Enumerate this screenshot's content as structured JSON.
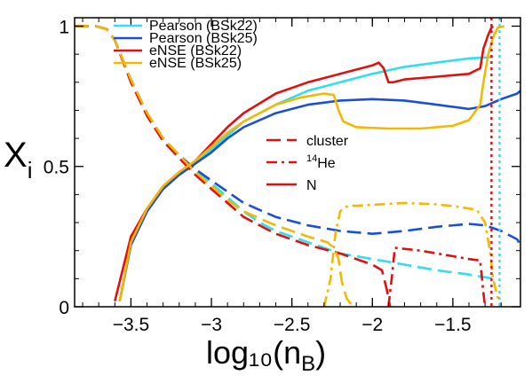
{
  "chart_data": {
    "type": "line",
    "xlabel": "log₁₀(n",
    "xlabel_sub": "B",
    "xlabel_close": ")",
    "ylabel": "X",
    "ylabel_sub": "i",
    "xlim": [
      -3.85,
      -1.08
    ],
    "ylim": [
      0,
      1.03
    ],
    "xticks": [
      -3.5,
      -3,
      -2.5,
      -2,
      -1.5
    ],
    "xtick_labels": [
      "−3.5",
      "−3",
      "−2.5",
      "−2",
      "−1.5"
    ],
    "yticks": [
      0,
      0.5,
      1
    ],
    "ytick_labels": [
      "0",
      "0.5",
      "1"
    ],
    "grid": false,
    "models": [
      {
        "name": "Pearson (BSk22)",
        "color": "#33ddee"
      },
      {
        "name": "Pearson (BSk25)",
        "color": "#1a4fd6"
      },
      {
        "name": "eNSE (BSk22)",
        "color": "#e01010"
      },
      {
        "name": "eNSE (BSk25)",
        "color": "#f5b800"
      }
    ],
    "styles_legend": {
      "color": "#e01010",
      "items": [
        {
          "label": "cluster",
          "dash": "dash"
        },
        {
          "label_sup": "14",
          "label": "He",
          "dash": "dashdot"
        },
        {
          "label": "N",
          "dash": "solid"
        }
      ]
    },
    "vlines": [
      {
        "x": -1.26,
        "color": "#e01010",
        "dash": "dot"
      },
      {
        "x": -1.21,
        "color": "#33ddee",
        "dash": "dot"
      }
    ],
    "series": [
      {
        "model": 0,
        "kind": "N",
        "dash": "solid",
        "x": [
          -3.57,
          -3.5,
          -3.4,
          -3.3,
          -3.2,
          -3.1,
          -3.0,
          -2.9,
          -2.8,
          -2.6,
          -2.4,
          -2.2,
          -2.0,
          -1.8,
          -1.6,
          -1.4,
          -1.25
        ],
        "y": [
          0.02,
          0.22,
          0.34,
          0.42,
          0.47,
          0.51,
          0.56,
          0.61,
          0.66,
          0.72,
          0.77,
          0.8,
          0.83,
          0.855,
          0.87,
          0.885,
          0.89
        ]
      },
      {
        "model": 0,
        "kind": "cluster",
        "dash": "dash",
        "x": [
          -3.85,
          -3.72,
          -3.65,
          -3.6,
          -3.5,
          -3.4,
          -3.3,
          -3.2,
          -3.1,
          -3.0,
          -2.9,
          -2.8,
          -2.7,
          -2.6,
          -2.5,
          -2.4,
          -2.3,
          -2.2,
          -2.0,
          -1.8,
          -1.6,
          -1.4,
          -1.25
        ],
        "y": [
          1.0,
          1.0,
          0.99,
          0.95,
          0.81,
          0.69,
          0.6,
          0.54,
          0.49,
          0.44,
          0.39,
          0.34,
          0.3,
          0.27,
          0.25,
          0.23,
          0.21,
          0.19,
          0.17,
          0.15,
          0.13,
          0.115,
          0.1
        ]
      },
      {
        "model": 1,
        "kind": "N",
        "dash": "solid",
        "x": [
          -3.57,
          -3.5,
          -3.4,
          -3.3,
          -3.2,
          -3.1,
          -3.0,
          -2.9,
          -2.8,
          -2.6,
          -2.4,
          -2.2,
          -2.0,
          -1.8,
          -1.6,
          -1.4,
          -1.3,
          -1.2,
          -1.1,
          -1.08
        ],
        "y": [
          0.02,
          0.22,
          0.34,
          0.42,
          0.47,
          0.51,
          0.55,
          0.6,
          0.64,
          0.69,
          0.72,
          0.735,
          0.74,
          0.735,
          0.72,
          0.705,
          0.715,
          0.74,
          0.76,
          0.77
        ]
      },
      {
        "model": 1,
        "kind": "cluster",
        "dash": "dash",
        "x": [
          -3.85,
          -3.72,
          -3.65,
          -3.6,
          -3.5,
          -3.4,
          -3.3,
          -3.2,
          -3.1,
          -3.0,
          -2.9,
          -2.8,
          -2.6,
          -2.4,
          -2.2,
          -2.0,
          -1.8,
          -1.6,
          -1.4,
          -1.3,
          -1.2,
          -1.1,
          -1.08
        ],
        "y": [
          1.0,
          1.0,
          0.99,
          0.95,
          0.81,
          0.69,
          0.6,
          0.54,
          0.49,
          0.45,
          0.41,
          0.37,
          0.32,
          0.29,
          0.27,
          0.26,
          0.27,
          0.285,
          0.295,
          0.29,
          0.27,
          0.24,
          0.22
        ]
      },
      {
        "model": 2,
        "kind": "N",
        "dash": "solid",
        "x": [
          -3.6,
          -3.5,
          -3.4,
          -3.3,
          -3.2,
          -3.1,
          -3.0,
          -2.9,
          -2.8,
          -2.6,
          -2.4,
          -2.2,
          -2.0,
          -1.96,
          -1.93,
          -1.9,
          -1.87,
          -1.8,
          -1.6,
          -1.4,
          -1.33,
          -1.31,
          -1.28,
          -1.26,
          -1.25
        ],
        "y": [
          0.02,
          0.25,
          0.35,
          0.43,
          0.48,
          0.52,
          0.58,
          0.64,
          0.69,
          0.76,
          0.8,
          0.83,
          0.86,
          0.87,
          0.85,
          0.8,
          0.8,
          0.81,
          0.82,
          0.83,
          0.85,
          0.92,
          0.97,
          0.995,
          1.0
        ]
      },
      {
        "model": 2,
        "kind": "cluster",
        "dash": "dash",
        "x": [
          -3.85,
          -3.72,
          -3.65,
          -3.6,
          -3.5,
          -3.4,
          -3.3,
          -3.2,
          -3.1,
          -3.0,
          -2.9,
          -2.8,
          -2.6,
          -2.4,
          -2.2,
          -2.0,
          -1.94,
          -1.91,
          -1.89
        ],
        "y": [
          1.0,
          1.0,
          0.99,
          0.95,
          0.8,
          0.68,
          0.59,
          0.53,
          0.47,
          0.42,
          0.37,
          0.32,
          0.26,
          0.22,
          0.19,
          0.15,
          0.13,
          0.06,
          0.0
        ]
      },
      {
        "model": 2,
        "kind": "he14",
        "dash": "dashdot",
        "x": [
          -1.9,
          -1.88,
          -1.86,
          -1.7,
          -1.5,
          -1.4,
          -1.33,
          -1.31,
          -1.3
        ],
        "y": [
          0.0,
          0.1,
          0.21,
          0.2,
          0.18,
          0.17,
          0.165,
          0.05,
          0.0
        ]
      },
      {
        "model": 3,
        "kind": "N",
        "dash": "solid",
        "x": [
          -3.57,
          -3.5,
          -3.4,
          -3.3,
          -3.2,
          -3.1,
          -3.0,
          -2.9,
          -2.8,
          -2.6,
          -2.45,
          -2.35,
          -2.3,
          -2.24,
          -2.21,
          -2.18,
          -2.1,
          -1.9,
          -1.7,
          -1.5,
          -1.4,
          -1.33,
          -1.31,
          -1.28,
          -1.25,
          -1.22,
          -1.18
        ],
        "y": [
          0.02,
          0.23,
          0.35,
          0.43,
          0.48,
          0.52,
          0.57,
          0.62,
          0.66,
          0.72,
          0.745,
          0.755,
          0.76,
          0.755,
          0.7,
          0.66,
          0.64,
          0.635,
          0.635,
          0.645,
          0.665,
          0.72,
          0.8,
          0.9,
          0.96,
          0.995,
          1.0
        ]
      },
      {
        "model": 3,
        "kind": "cluster",
        "dash": "dash",
        "x": [
          -3.85,
          -3.72,
          -3.65,
          -3.6,
          -3.5,
          -3.4,
          -3.3,
          -3.2,
          -3.1,
          -3.0,
          -2.9,
          -2.8,
          -2.6,
          -2.4,
          -2.28,
          -2.24,
          -2.21,
          -2.19,
          -2.16,
          -2.12
        ],
        "y": [
          1.0,
          1.0,
          0.99,
          0.95,
          0.81,
          0.69,
          0.6,
          0.54,
          0.48,
          0.43,
          0.38,
          0.34,
          0.29,
          0.25,
          0.23,
          0.21,
          0.17,
          0.09,
          0.03,
          0.0
        ]
      },
      {
        "model": 3,
        "kind": "he14",
        "dash": "dashdot",
        "x": [
          -2.3,
          -2.26,
          -2.23,
          -2.2,
          -2.17,
          -2.14,
          -2.1,
          -1.95,
          -1.8,
          -1.6,
          -1.45,
          -1.35,
          -1.3,
          -1.27,
          -1.25,
          -1.22,
          -1.2
        ],
        "y": [
          0.0,
          0.1,
          0.26,
          0.34,
          0.355,
          0.36,
          0.36,
          0.365,
          0.37,
          0.365,
          0.355,
          0.345,
          0.3,
          0.2,
          0.1,
          0.03,
          0.0
        ]
      }
    ]
  }
}
